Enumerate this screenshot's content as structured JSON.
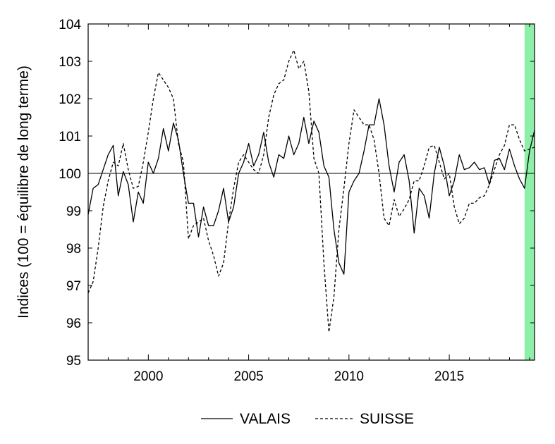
{
  "chart_data": {
    "type": "line",
    "title": "",
    "xlabel": "",
    "ylabel": "Indices (100 = équilibre de long terme)",
    "xlim": [
      1997.0,
      2019.25
    ],
    "ylim": [
      95,
      104
    ],
    "x_ticks": [
      2000,
      2005,
      2010,
      2015
    ],
    "x_tick_labels": [
      "2000",
      "2005",
      "2010",
      "2015"
    ],
    "y_ticks": [
      95,
      96,
      97,
      98,
      99,
      100,
      101,
      102,
      103,
      104
    ],
    "y_tick_labels": [
      "95",
      "96",
      "97",
      "98",
      "99",
      "100",
      "101",
      "102",
      "103",
      "104"
    ],
    "reference_line": 100,
    "shaded_region": {
      "x_start": 2018.75,
      "x_end": 2019.25,
      "color": "#8ef0a8"
    },
    "grid": false,
    "legend_position": "bottom",
    "series": [
      {
        "name": "VALAIS",
        "style": "solid",
        "color": "#000000",
        "x": [
          1997.0,
          1997.25,
          1997.5,
          1997.75,
          1998.0,
          1998.25,
          1998.5,
          1998.75,
          1999.0,
          1999.25,
          1999.5,
          1999.75,
          2000.0,
          2000.25,
          2000.5,
          2000.75,
          2001.0,
          2001.25,
          2001.5,
          2001.75,
          2002.0,
          2002.25,
          2002.5,
          2002.75,
          2003.0,
          2003.25,
          2003.5,
          2003.75,
          2004.0,
          2004.25,
          2004.5,
          2004.75,
          2005.0,
          2005.25,
          2005.5,
          2005.75,
          2006.0,
          2006.25,
          2006.5,
          2006.75,
          2007.0,
          2007.25,
          2007.5,
          2007.75,
          2008.0,
          2008.25,
          2008.5,
          2008.75,
          2009.0,
          2009.25,
          2009.5,
          2009.75,
          2010.0,
          2010.25,
          2010.5,
          2010.75,
          2011.0,
          2011.25,
          2011.5,
          2011.75,
          2012.0,
          2012.25,
          2012.5,
          2012.75,
          2013.0,
          2013.25,
          2013.5,
          2013.75,
          2014.0,
          2014.25,
          2014.5,
          2014.75,
          2015.0,
          2015.25,
          2015.5,
          2015.75,
          2016.0,
          2016.25,
          2016.5,
          2016.75,
          2017.0,
          2017.25,
          2017.5,
          2017.75,
          2018.0,
          2018.25,
          2018.5,
          2018.75,
          2019.0,
          2019.25
        ],
        "values": [
          98.9,
          99.6,
          99.7,
          100.1,
          100.5,
          100.75,
          99.4,
          100.05,
          99.7,
          98.7,
          99.5,
          99.2,
          100.3,
          100.0,
          100.4,
          101.2,
          100.6,
          101.35,
          100.9,
          100.0,
          99.2,
          99.2,
          98.3,
          99.1,
          98.6,
          98.6,
          99.0,
          99.6,
          98.7,
          99.1,
          100.0,
          100.3,
          100.8,
          100.2,
          100.5,
          101.1,
          100.3,
          99.9,
          100.5,
          100.4,
          101.0,
          100.5,
          100.8,
          101.5,
          100.8,
          101.4,
          101.1,
          100.2,
          99.9,
          98.5,
          97.6,
          97.3,
          99.5,
          99.8,
          100.0,
          100.6,
          101.3,
          101.3,
          102.0,
          101.3,
          100.2,
          99.5,
          100.3,
          100.5,
          99.8,
          98.4,
          99.6,
          99.4,
          98.8,
          100.0,
          100.7,
          100.2,
          99.4,
          99.8,
          100.5,
          100.1,
          100.15,
          100.3,
          100.1,
          100.15,
          99.7,
          100.35,
          100.4,
          100.1,
          100.65,
          100.2,
          99.85,
          99.6,
          100.6,
          101.15
        ]
      },
      {
        "name": "SUISSE",
        "style": "dashed",
        "color": "#000000",
        "x": [
          1997.0,
          1997.25,
          1997.5,
          1997.75,
          1998.0,
          1998.25,
          1998.5,
          1998.75,
          1999.0,
          1999.25,
          1999.5,
          1999.75,
          2000.0,
          2000.25,
          2000.5,
          2000.75,
          2001.0,
          2001.25,
          2001.5,
          2001.75,
          2002.0,
          2002.25,
          2002.5,
          2002.75,
          2003.0,
          2003.25,
          2003.5,
          2003.75,
          2004.0,
          2004.25,
          2004.5,
          2004.75,
          2005.0,
          2005.25,
          2005.5,
          2005.75,
          2006.0,
          2006.25,
          2006.5,
          2006.75,
          2007.0,
          2007.25,
          2007.5,
          2007.75,
          2008.0,
          2008.25,
          2008.5,
          2008.75,
          2009.0,
          2009.25,
          2009.5,
          2009.75,
          2010.0,
          2010.25,
          2010.5,
          2010.75,
          2011.0,
          2011.25,
          2011.5,
          2011.75,
          2012.0,
          2012.25,
          2012.5,
          2012.75,
          2013.0,
          2013.25,
          2013.5,
          2013.75,
          2014.0,
          2014.25,
          2014.5,
          2014.75,
          2015.0,
          2015.25,
          2015.5,
          2015.75,
          2016.0,
          2016.25,
          2016.5,
          2016.75,
          2017.0,
          2017.25,
          2017.5,
          2017.75,
          2018.0,
          2018.25,
          2018.5,
          2018.75,
          2019.0,
          2019.25
        ],
        "values": [
          96.8,
          97.1,
          98.0,
          99.1,
          99.8,
          100.3,
          100.2,
          100.8,
          100.1,
          99.6,
          99.65,
          100.3,
          101.1,
          102.0,
          102.7,
          102.5,
          102.3,
          102.0,
          100.8,
          100.3,
          98.25,
          98.6,
          98.7,
          98.8,
          98.2,
          97.8,
          97.25,
          97.6,
          98.7,
          99.6,
          100.3,
          100.5,
          100.3,
          100.1,
          100.0,
          100.5,
          101.5,
          102.1,
          102.4,
          102.5,
          103.0,
          103.3,
          102.8,
          103.0,
          102.2,
          100.4,
          100.0,
          97.6,
          95.75,
          96.7,
          98.5,
          99.6,
          100.8,
          101.7,
          101.5,
          101.3,
          101.3,
          100.9,
          100.0,
          98.8,
          98.6,
          99.3,
          98.85,
          99.05,
          99.3,
          99.8,
          99.8,
          100.2,
          100.7,
          100.75,
          100.3,
          99.85,
          100.0,
          99.1,
          98.65,
          98.8,
          99.2,
          99.2,
          99.35,
          99.4,
          99.7,
          100.1,
          100.5,
          100.75,
          101.3,
          101.3,
          100.9,
          100.6,
          100.65,
          100.7
        ]
      }
    ]
  }
}
